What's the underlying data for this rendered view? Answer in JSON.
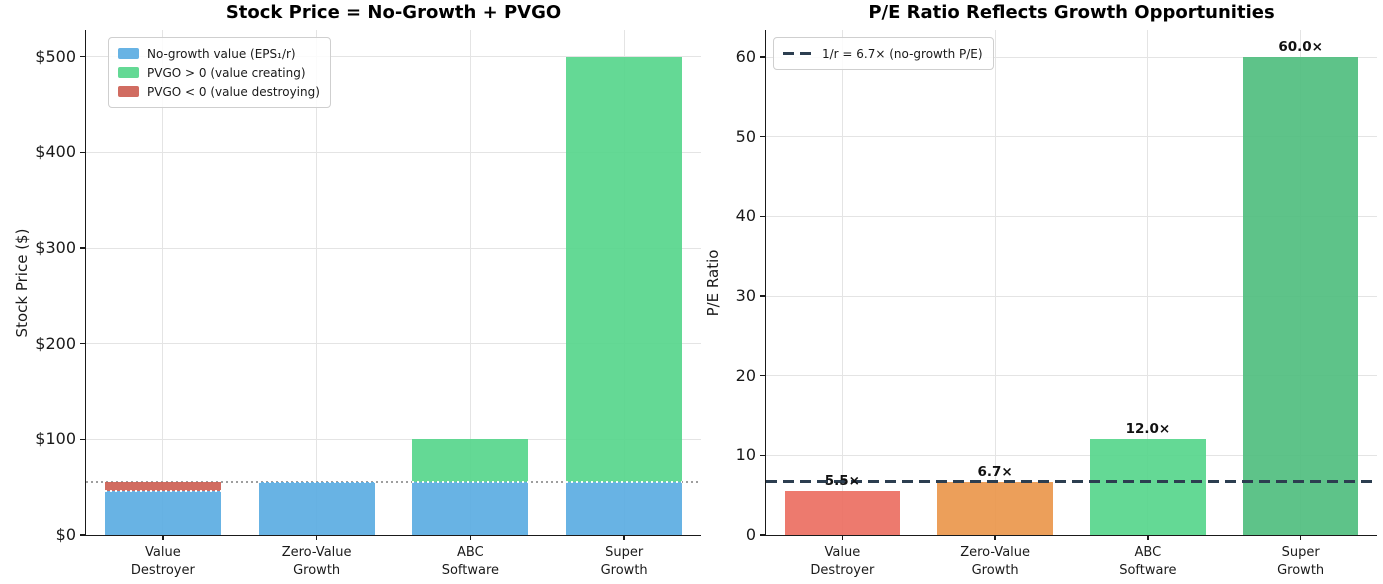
{
  "figure": {
    "background": "#ffffff"
  },
  "chart_data": [
    {
      "type": "bar",
      "subtype": "stacked",
      "title": "Stock Price = No-Growth + PVGO",
      "xlabel": "",
      "ylabel": "Stock Price ($)",
      "ylim": [
        0,
        528
      ],
      "grid": true,
      "yticks": [
        {
          "value": 0,
          "label": "$0"
        },
        {
          "value": 100,
          "label": "$100"
        },
        {
          "value": 200,
          "label": "$200"
        },
        {
          "value": 300,
          "label": "$300"
        },
        {
          "value": 400,
          "label": "$400"
        },
        {
          "value": 500,
          "label": "$500"
        }
      ],
      "categories": [
        [
          "Value",
          "Destroyer"
        ],
        [
          "Zero-Value",
          "Growth"
        ],
        [
          "ABC",
          "Software"
        ],
        [
          "Super",
          "Growth"
        ]
      ],
      "series": [
        {
          "name": "No-growth value (EPS₁/r)",
          "color": "#5dade2",
          "values": [
            45.8,
            55.6,
            55.6,
            55.6
          ]
        },
        {
          "name": "PVGO > 0 (value creating)",
          "color": "#58d68d",
          "values": [
            0,
            0,
            44.4,
            444.4
          ]
        },
        {
          "name": "PVGO < 0 (value destroying)",
          "color": "#cd6155",
          "values": [
            9.8,
            0,
            0,
            0
          ]
        }
      ],
      "totals": [
        55.6,
        55.6,
        100,
        500
      ],
      "reference_line": {
        "value": 55.6,
        "style": "dotted",
        "color": "#9e9e9e"
      },
      "legend_position": "upper-left"
    },
    {
      "type": "bar",
      "subtype": "simple",
      "title": "P/E Ratio Reflects Growth Opportunities",
      "xlabel": "",
      "ylabel": "P/E Ratio",
      "ylim": [
        0,
        63.4
      ],
      "grid": true,
      "yticks": [
        {
          "value": 0,
          "label": "0"
        },
        {
          "value": 10,
          "label": "10"
        },
        {
          "value": 20,
          "label": "20"
        },
        {
          "value": 30,
          "label": "30"
        },
        {
          "value": 40,
          "label": "40"
        },
        {
          "value": 50,
          "label": "50"
        },
        {
          "value": 60,
          "label": "60"
        }
      ],
      "categories": [
        [
          "Value",
          "Destroyer"
        ],
        [
          "Zero-Value",
          "Growth"
        ],
        [
          "ABC",
          "Software"
        ],
        [
          "Super",
          "Growth"
        ]
      ],
      "values": [
        5.5,
        6.7,
        12.0,
        60.0
      ],
      "bar_labels": [
        "5.5×",
        "6.7×",
        "12.0×",
        "60.0×"
      ],
      "bar_colors": [
        "#ec7063",
        "#eb984e",
        "#58d68d",
        "#52be80"
      ],
      "reference_line": {
        "value": 6.7,
        "style": "dashed",
        "color": "#2c3e50",
        "legend_label": "1/r = 6.7× (no-growth P/E)"
      },
      "legend_position": "upper-left"
    }
  ]
}
